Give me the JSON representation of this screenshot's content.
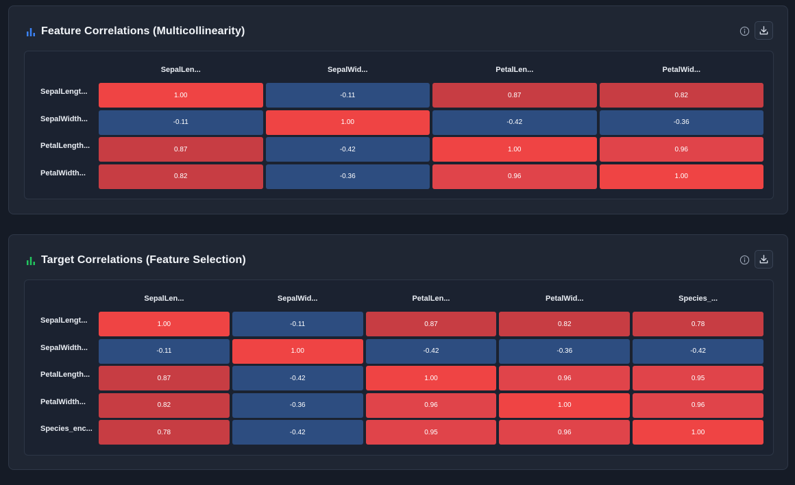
{
  "colors": {
    "positive_strong": "#ef4444",
    "positive_mid": "#e0444a",
    "positive_soft": "#c73d43",
    "negative": "#2d4d80",
    "accent_blue": "#3b82f6",
    "accent_green": "#22c55e"
  },
  "icons": {
    "card1_title_icon": "bar-chart-icon",
    "card2_title_icon": "bar-chart-icon",
    "info": "info-circle-icon",
    "download": "download-icon"
  },
  "chart_data": [
    {
      "type": "heatmap",
      "title": "Feature Correlations (Multicollinearity)",
      "x_labels": [
        "SepalLen...",
        "SepalWid...",
        "PetalLen...",
        "PetalWid..."
      ],
      "y_labels": [
        "SepalLengt...",
        "SepalWidth...",
        "PetalLength...",
        "PetalWidth..."
      ],
      "values": [
        [
          1.0,
          -0.11,
          0.87,
          0.82
        ],
        [
          -0.11,
          1.0,
          -0.42,
          -0.36
        ],
        [
          0.87,
          -0.42,
          1.0,
          0.96
        ],
        [
          0.82,
          -0.36,
          0.96,
          1.0
        ]
      ],
      "value_format": "0.00"
    },
    {
      "type": "heatmap",
      "title": "Target Correlations (Feature Selection)",
      "x_labels": [
        "SepalLen...",
        "SepalWid...",
        "PetalLen...",
        "PetalWid...",
        "Species_..."
      ],
      "y_labels": [
        "SepalLengt...",
        "SepalWidth...",
        "PetalLength...",
        "PetalWidth...",
        "Species_enc..."
      ],
      "values": [
        [
          1.0,
          -0.11,
          0.87,
          0.82,
          0.78
        ],
        [
          -0.11,
          1.0,
          -0.42,
          -0.36,
          -0.42
        ],
        [
          0.87,
          -0.42,
          1.0,
          0.96,
          0.95
        ],
        [
          0.82,
          -0.36,
          0.96,
          1.0,
          0.96
        ],
        [
          0.78,
          -0.42,
          0.95,
          0.96,
          1.0
        ]
      ],
      "value_format": "0.00"
    }
  ]
}
